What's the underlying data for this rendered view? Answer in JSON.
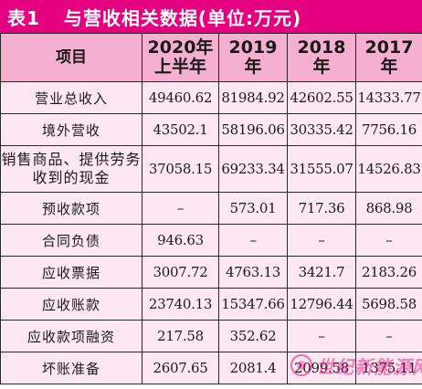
{
  "title": {
    "label": "表1",
    "text": "与营收相关数据(单位:万元)"
  },
  "table": {
    "headers": [
      {
        "line1": "项目",
        "line2": ""
      },
      {
        "line1": "2020年",
        "line2": "上半年"
      },
      {
        "line1": "2019",
        "line2": "年"
      },
      {
        "line1": "2018",
        "line2": "年"
      },
      {
        "line1": "2017",
        "line2": "年"
      }
    ],
    "rows": [
      {
        "label": "营业总收入",
        "values": [
          "49460.62",
          "81984.92",
          "42602.55",
          "14333.77"
        ]
      },
      {
        "label": "境外营收",
        "values": [
          "43502.1",
          "58196.06",
          "30335.42",
          "7756.16"
        ]
      },
      {
        "label": "销售商品、提供劳务收到的现金",
        "values": [
          "37058.15",
          "69233.34",
          "31555.07",
          "14526.83"
        ]
      },
      {
        "label": "预收款项",
        "values": [
          "–",
          "573.01",
          "717.36",
          "868.98"
        ]
      },
      {
        "label": "合同负债",
        "values": [
          "946.63",
          "–",
          "–",
          "–"
        ]
      },
      {
        "label": "应收票据",
        "values": [
          "3007.72",
          "4763.13",
          "3421.7",
          "2183.26"
        ]
      },
      {
        "label": "应收账款",
        "values": [
          "23740.13",
          "15347.66",
          "12796.44",
          "5698.58"
        ]
      },
      {
        "label": "应收款项融资",
        "values": [
          "217.58",
          "352.62",
          "–",
          "–"
        ]
      },
      {
        "label": "坏账准备",
        "values": [
          "2607.65",
          "2081.4",
          "2099.58",
          "1375.11"
        ]
      }
    ]
  },
  "watermark": {
    "text": "世纪新能源网"
  },
  "colors": {
    "title_bg": "#e4007e",
    "header_bg": "#f6b0cf",
    "body_bg": "#fde8f1"
  }
}
